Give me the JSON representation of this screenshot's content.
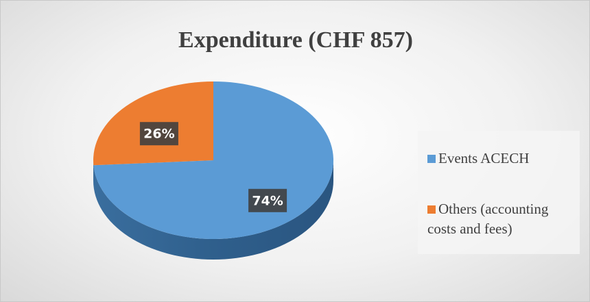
{
  "chart_data": {
    "type": "pie",
    "title": "Expenditure (CHF 857)",
    "categories": [
      "Events ACECH",
      "Others (accounting costs and fees)"
    ],
    "values": [
      74,
      26
    ],
    "value_labels": [
      "74%",
      "26%"
    ],
    "colors": [
      "#5b9bd5",
      "#ed7d31"
    ],
    "legend": "right"
  }
}
